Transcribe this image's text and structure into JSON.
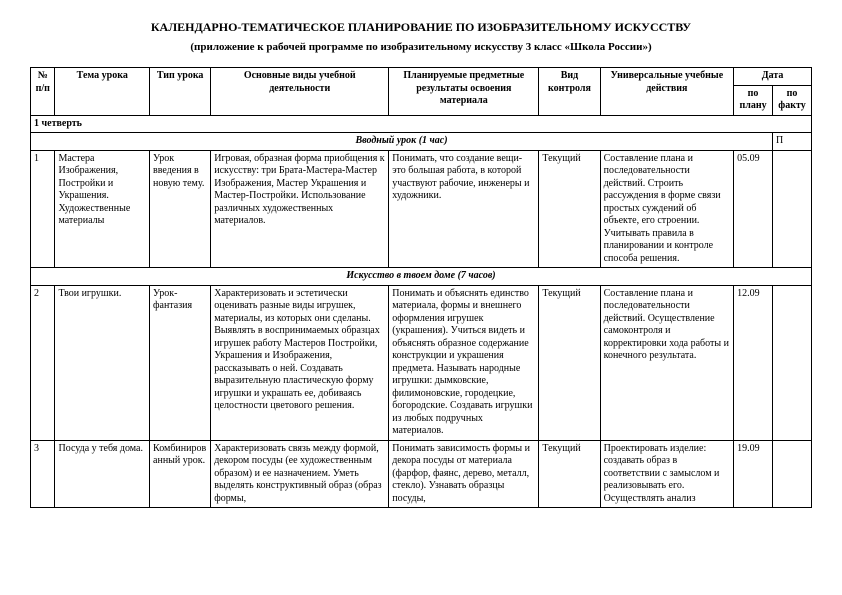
{
  "title": "КАЛЕНДАРНО-ТЕМАТИЧЕСКОЕ ПЛАНИРОВАНИЕ ПО ИЗОБРАЗИТЕЛЬНОМУ ИСКУССТВУ",
  "subtitle": "(приложение к рабочей программе по изобразительному искусству 3 класс «Школа России»)",
  "headers": {
    "num": "№ п/п",
    "topic": "Тема урока",
    "type": "Тип урока",
    "activities": "Основные виды учебной деятельности",
    "results": "Планируемые предметные результаты освоения материала",
    "control": "Вид контроля",
    "uud": "Универсальные учебные действия",
    "date": "Дата",
    "date_plan": "по плану",
    "date_fact": "по факту"
  },
  "quarter_label": "1 четверть",
  "section_intro": "Вводный урок  (1 час)",
  "section_intro_right": "П",
  "section_art": "Искусство в твоем доме (7 часов)",
  "rows": [
    {
      "num": "1",
      "topic": "Мастера Изображения, Постройки и Украшения. Художественные материалы",
      "type": "Урок введения в новую тему.",
      "activities": "Игровая, образная форма приобщения к искусству: три Брата-Мастера-Мастер Изображения, Мастер Украшения и Мастер-Постройки. Использование различных художественных материалов.",
      "results": "Понимать, что создание вещи-это большая работа, в которой участвуют рабочие, инженеры и художники.",
      "control": "Текущий",
      "uud": "Составление плана и последовательности действий. Строить рассуждения в форме связи простых суждений об объекте, его строении. Учитывать правила в планировании и контроле способа решения.",
      "date_plan": "05.09",
      "date_fact": ""
    },
    {
      "num": "2",
      "topic": "Твои игрушки.",
      "type": "Урок-фантазия",
      "activities": "Характеризовать и эстетически оценивать разные виды игрушек, материалы, из которых они сделаны. Выявлять в воспринимаемых образцах игрушек работу Мастеров Постройки, Украшения и Изображения, рассказывать о ней. Создавать выразительную пластическую форму игрушки и украшать ее, добиваясь целостности цветового решения.",
      "results": "Понимать и объяснять единство материала, формы и внешнего оформления игрушек (украшения). Учиться видеть и объяснять образное содержание конструкции и украшения предмета. Называть народные игрушки: дымковские, филимоновские, городецкие, богородские. Создавать игрушки из любых подручных материалов.",
      "control": "Текущий",
      "uud": "Составление плана и последовательности действий. Осуществление самоконтроля и корректировки хода работы и конечного результата.",
      "date_plan": "12.09",
      "date_fact": ""
    },
    {
      "num": "3",
      "topic": "Посуда у тебя дома.",
      "type": "Комбинированный урок.",
      "activities": "Характеризовать связь между формой, декором посуды (ее художественным образом) и ее назначением. Уметь выделять конструктивный образ (образ формы,",
      "results": "Понимать зависимость формы и декора посуды от материала (фарфор, фаянс, дерево, металл, стекло). Узнавать образцы посуды,",
      "control": "Текущий",
      "uud": "Проектировать изделие: создавать образ в соответствии с замыслом и реализовывать его. Осуществлять анализ",
      "date_plan": "19.09",
      "date_fact": ""
    }
  ]
}
